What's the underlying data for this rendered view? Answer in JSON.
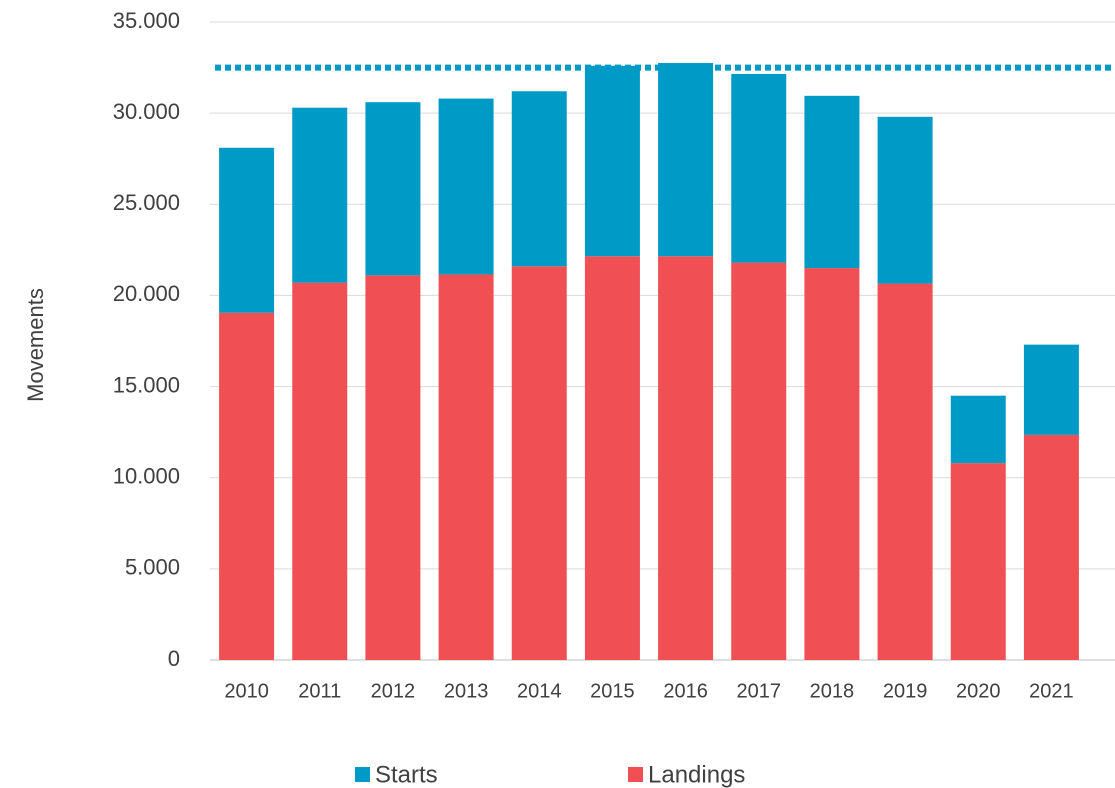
{
  "chart_data": {
    "type": "stacked_bar",
    "ylabel": "Movements",
    "categories": [
      "2010",
      "2011",
      "2012",
      "2013",
      "2014",
      "2015",
      "2016",
      "2017",
      "2018",
      "2019",
      "2020",
      "2021"
    ],
    "series": [
      {
        "name": "Starts",
        "color": "#009ac7",
        "values": [
          9050,
          9600,
          9500,
          9650,
          9600,
          10450,
          10600,
          10350,
          9450,
          9150,
          3700,
          4950
        ]
      },
      {
        "name": "Landings",
        "color": "#f04f54",
        "values": [
          19050,
          20700,
          21100,
          21150,
          21600,
          22150,
          22150,
          21800,
          21500,
          20650,
          10800,
          12350
        ]
      }
    ],
    "reference_line": {
      "value": 32500,
      "color": "#009ac7"
    },
    "ylim": [
      0,
      35000
    ],
    "yticks": [
      0,
      {
        "value": 5000,
        "label": "5.000"
      },
      {
        "value": 10000,
        "label": "10.000"
      },
      {
        "value": 15000,
        "label": "15.000"
      },
      {
        "value": 20000,
        "label": "20.000"
      },
      {
        "value": 25000,
        "label": "25.000"
      },
      {
        "value": 30000,
        "label": "30.000"
      },
      {
        "value": 35000,
        "label": "35.000"
      }
    ],
    "grid": true,
    "legend": "bottom"
  }
}
